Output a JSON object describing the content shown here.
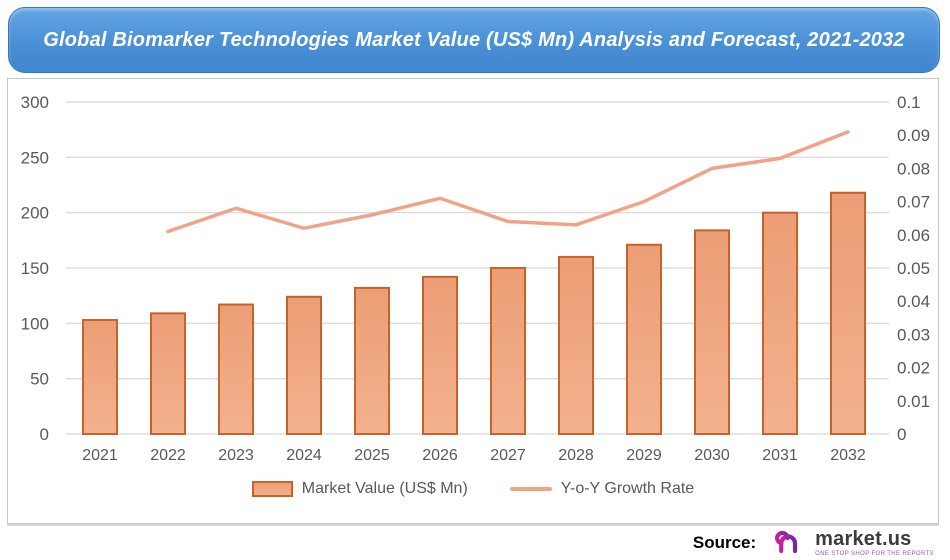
{
  "chart_data": {
    "type": "combo-bar-line",
    "title": "Global Biomarker Technologies Market Value (US$ Mn) Analysis and Forecast, 2021-2032",
    "categories": [
      "2021",
      "2022",
      "2023",
      "2024",
      "2025",
      "2026",
      "2027",
      "2028",
      "2029",
      "2030",
      "2031",
      "2032"
    ],
    "series": [
      {
        "name": "Market Value (US$ Mn)",
        "type": "bar",
        "axis": "left",
        "values": [
          103,
          109,
          117,
          124,
          132,
          142,
          150,
          160,
          171,
          184,
          200,
          218
        ]
      },
      {
        "name": "Y-o-Y Growth Rate",
        "type": "line",
        "axis": "right",
        "values": [
          null,
          0.061,
          0.068,
          0.062,
          0.066,
          0.071,
          0.064,
          0.063,
          0.07,
          0.08,
          0.083,
          0.091
        ]
      }
    ],
    "left_axis": {
      "min": 0,
      "max": 300,
      "ticks": [
        "300",
        "250",
        "200",
        "150",
        "100",
        "50",
        "0"
      ]
    },
    "right_axis": {
      "min": 0,
      "max": 0.1,
      "ticks": [
        "0.1",
        "0.09",
        "0.08",
        "0.07",
        "0.06",
        "0.05",
        "0.04",
        "0.03",
        "0.02",
        "0.01",
        "0"
      ]
    },
    "grid": true,
    "legend_position": "bottom"
  },
  "legend": {
    "items": [
      {
        "label": "Market Value (US$ Mn)",
        "swatch": "bar"
      },
      {
        "label": "Y-o-Y Growth Rate",
        "swatch": "line"
      }
    ]
  },
  "source": {
    "label": "Source:",
    "brand": "market.us",
    "tagline": "ONE STOP SHOP FOR THE REPORTS"
  },
  "colors": {
    "banner_blue": "#4a90d6",
    "banner_border": "#3579bd",
    "bar_fill_top": "#ec9e75",
    "bar_fill_bottom": "#f3b18e",
    "bar_border": "#c8622a",
    "line": "#f2a387",
    "grid": "#d6d6d6",
    "axis_text": "#595959"
  }
}
